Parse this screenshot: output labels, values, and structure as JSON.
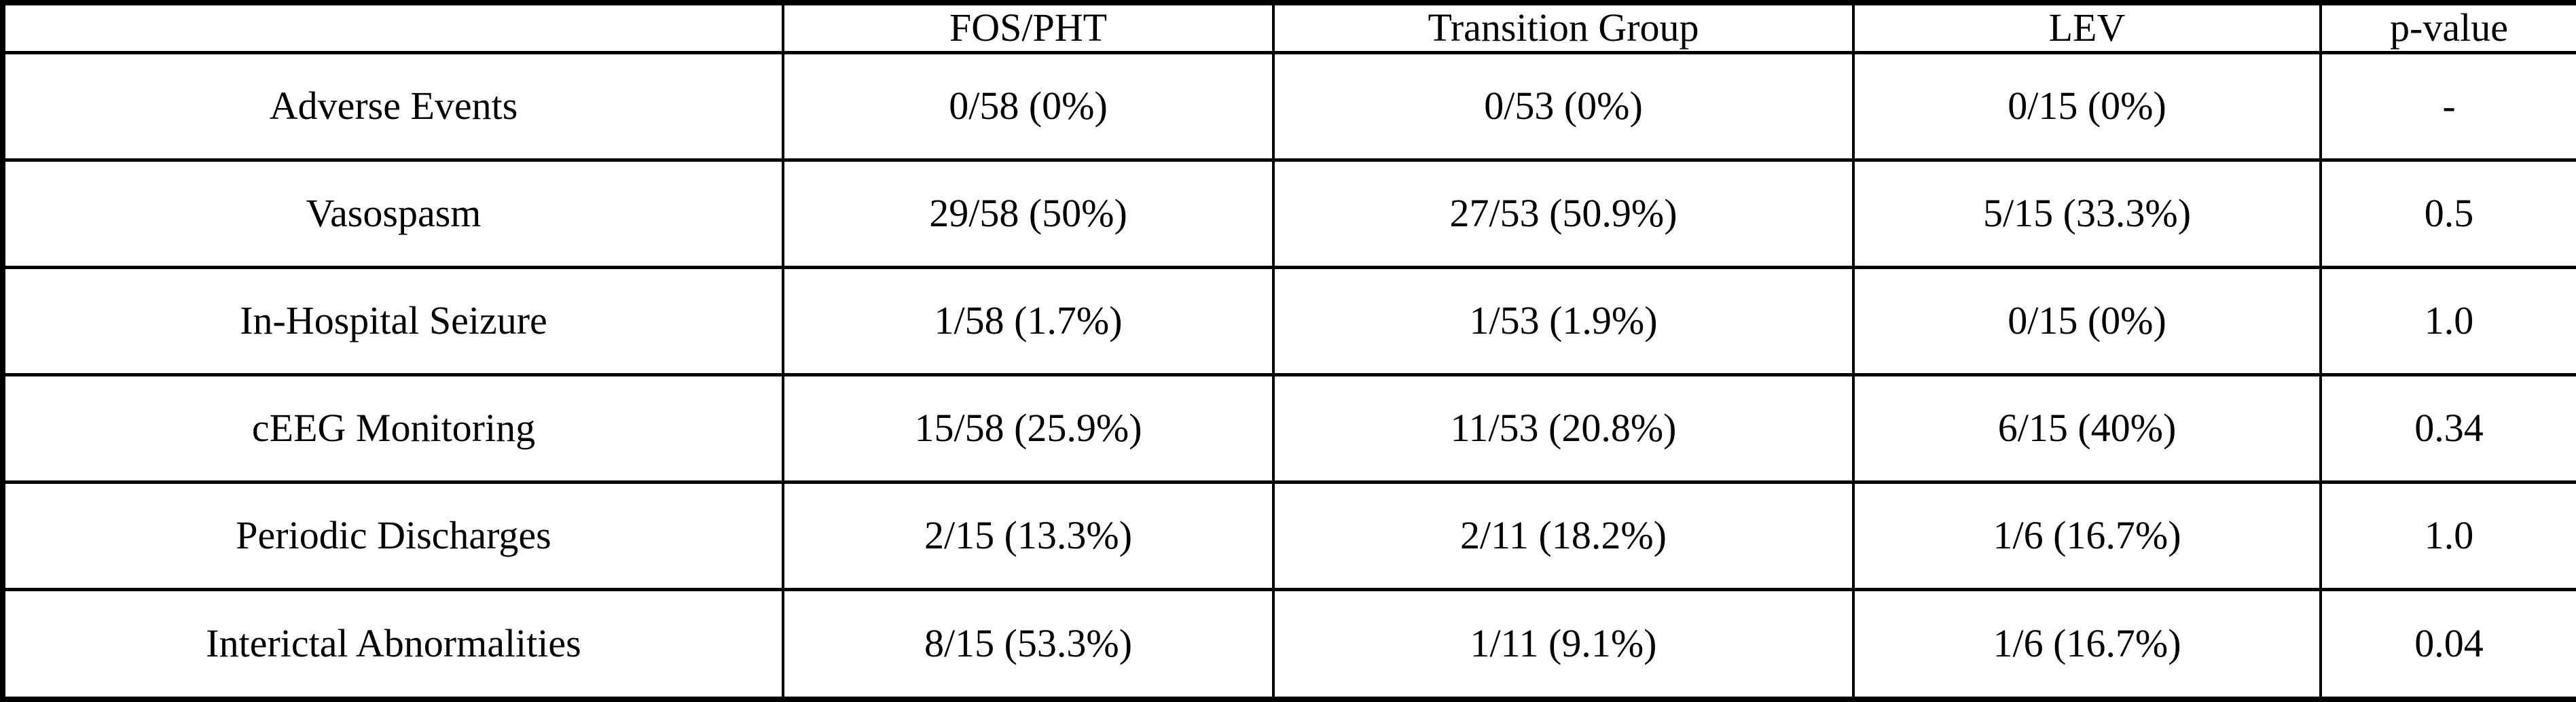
{
  "table": {
    "headers": [
      "",
      "FOS/PHT",
      "Transition Group",
      "LEV",
      "p-value"
    ],
    "rows": [
      {
        "label": "Adverse Events",
        "values": [
          "0/58 (0%)",
          "0/53 (0%)",
          "0/15 (0%)",
          "-"
        ]
      },
      {
        "label": "Vasospasm",
        "values": [
          "29/58 (50%)",
          "27/53 (50.9%)",
          "5/15 (33.3%)",
          "0.5"
        ]
      },
      {
        "label": "In-Hospital Seizure",
        "values": [
          "1/58 (1.7%)",
          "1/53 (1.9%)",
          "0/15 (0%)",
          "1.0"
        ]
      },
      {
        "label": "cEEG Monitoring",
        "values": [
          "15/58 (25.9%)",
          "11/53 (20.8%)",
          "6/15 (40%)",
          "0.34"
        ]
      },
      {
        "label": "Periodic Discharges",
        "values": [
          "2/15 (13.3%)",
          "2/11 (18.2%)",
          "1/6 (16.7%)",
          "1.0"
        ]
      },
      {
        "label": "Interictal Abnormalities",
        "values": [
          "8/15 (53.3%)",
          "1/11 (9.1%)",
          "1/6 (16.7%)",
          "0.04"
        ]
      }
    ]
  },
  "colors": {
    "border": "#000000",
    "background": "#ffffff",
    "text": "#000000"
  },
  "chart_data": {
    "type": "table",
    "title": "",
    "columns": [
      "",
      "FOS/PHT",
      "Transition Group",
      "LEV",
      "p-value"
    ],
    "rows": [
      [
        "Adverse Events",
        "0/58 (0%)",
        "0/53 (0%)",
        "0/15 (0%)",
        "-"
      ],
      [
        "Vasospasm",
        "29/58 (50%)",
        "27/53 (50.9%)",
        "5/15 (33.3%)",
        "0.5"
      ],
      [
        "In-Hospital Seizure",
        "1/58 (1.7%)",
        "1/53 (1.9%)",
        "0/15 (0%)",
        "1.0"
      ],
      [
        "cEEG Monitoring",
        "15/58 (25.9%)",
        "11/53 (20.8%)",
        "6/15 (40%)",
        "0.34"
      ],
      [
        "Periodic Discharges",
        "2/15 (13.3%)",
        "2/11 (18.2%)",
        "1/6 (16.7%)",
        "1.0"
      ],
      [
        "Interictal Abnormalities",
        "8/15 (53.3%)",
        "1/11 (9.1%)",
        "1/6 (16.7%)",
        "0.04"
      ]
    ]
  }
}
